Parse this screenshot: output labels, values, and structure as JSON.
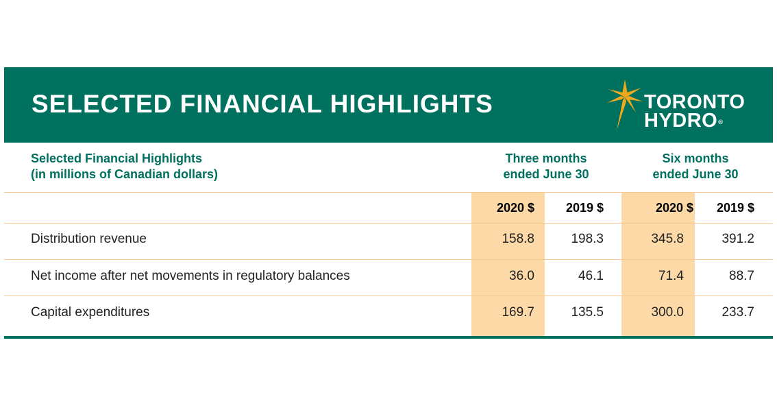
{
  "header": {
    "title": "SELECTED FINANCIAL HIGHLIGHTS",
    "logo_line1": "TORONTO",
    "logo_line2": "HYDRO",
    "logo_reg": "®"
  },
  "table": {
    "label_line1": "Selected Financial Highlights",
    "label_line2": "(in millions of Canadian dollars)",
    "periods": [
      {
        "line1": "Three months",
        "line2": "ended June 30"
      },
      {
        "line1": "Six months",
        "line2": "ended June 30"
      }
    ],
    "columns": [
      "2020 $",
      "2019 $",
      "2020 $",
      "2019 $"
    ],
    "rows": [
      {
        "label": "Distribution revenue",
        "values": [
          "158.8",
          "198.3",
          "345.8",
          "391.2"
        ]
      },
      {
        "label": "Net income after net movements in regulatory balances",
        "values": [
          "36.0",
          "46.1",
          "71.4",
          "88.7"
        ]
      },
      {
        "label": "Capital expenditures",
        "values": [
          "169.7",
          "135.5",
          "300.0",
          "233.7"
        ]
      }
    ]
  },
  "colors": {
    "brand_green": "#00705f",
    "highlight_peach": "#fcd9a6",
    "logo_gold": "#f2a81d"
  }
}
